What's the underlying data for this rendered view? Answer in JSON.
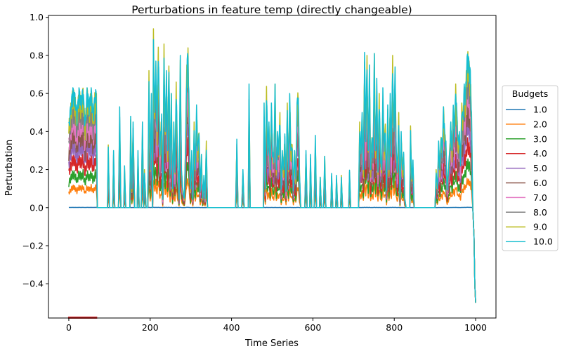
{
  "chart_data": {
    "type": "line",
    "title": "Perturbations in feature temp (directly changeable)",
    "xlabel": "Time Series",
    "ylabel": "Perturbation",
    "xlim": [
      -50,
      1050
    ],
    "ylim": [
      -0.58,
      1.01
    ],
    "x_ticks": [
      0,
      200,
      400,
      600,
      800,
      1000
    ],
    "y_ticks": [
      -0.4,
      -0.2,
      0.0,
      0.2,
      0.4,
      0.6,
      0.8,
      1.0
    ],
    "y_tick_labels": [
      "−0.4",
      "−0.2",
      "0.0",
      "0.2",
      "0.4",
      "0.6",
      "0.8",
      "1.0"
    ],
    "grid": false,
    "legend": {
      "title": "Budgets",
      "placement": "right (outside plot)"
    },
    "series": [
      {
        "name": "1.0",
        "color": "#1f77b4",
        "scale": 0.002
      },
      {
        "name": "2.0",
        "color": "#ff7f0e",
        "scale": 0.17
      },
      {
        "name": "3.0",
        "color": "#2ca02c",
        "scale": 0.28
      },
      {
        "name": "4.0",
        "color": "#d62728",
        "scale": 0.4
      },
      {
        "name": "5.0",
        "color": "#9467bd",
        "scale": 0.52
      },
      {
        "name": "6.0",
        "color": "#8c564b",
        "scale": 0.62
      },
      {
        "name": "7.0",
        "color": "#e377c2",
        "scale": 0.72
      },
      {
        "name": "8.0",
        "color": "#7f7f7f",
        "scale": 0.82
      },
      {
        "name": "9.0",
        "color": "#bcbd22",
        "scale": 0.92
      },
      {
        "name": "10.0",
        "color": "#17becf",
        "scale": 1.0
      }
    ],
    "envelope_points": [
      [
        0,
        0.45
      ],
      [
        5,
        0.55
      ],
      [
        10,
        0.63
      ],
      [
        15,
        0.6
      ],
      [
        20,
        0.5
      ],
      [
        25,
        0.63
      ],
      [
        30,
        0.58
      ],
      [
        35,
        0.63
      ],
      [
        40,
        0.45
      ],
      [
        45,
        0.63
      ],
      [
        50,
        0.55
      ],
      [
        55,
        0.63
      ],
      [
        60,
        0.5
      ],
      [
        65,
        0.63
      ],
      [
        68,
        0.6
      ],
      [
        70,
        0
      ],
      [
        95,
        0
      ],
      [
        97,
        0.33
      ],
      [
        100,
        0
      ],
      [
        108,
        0
      ],
      [
        110,
        0.3
      ],
      [
        113,
        0
      ],
      [
        122,
        0
      ],
      [
        125,
        0.53
      ],
      [
        128,
        0
      ],
      [
        135,
        0
      ],
      [
        137,
        0.22
      ],
      [
        140,
        0
      ],
      [
        150,
        0
      ],
      [
        152,
        0.48
      ],
      [
        155,
        0.1
      ],
      [
        158,
        0.45
      ],
      [
        162,
        0
      ],
      [
        168,
        0
      ],
      [
        170,
        0.3
      ],
      [
        173,
        0
      ],
      [
        178,
        0
      ],
      [
        181,
        0.45
      ],
      [
        184,
        0
      ],
      [
        186,
        0.2
      ],
      [
        190,
        0
      ],
      [
        194,
        0
      ],
      [
        197,
        0.72
      ],
      [
        200,
        0.2
      ],
      [
        203,
        0.6
      ],
      [
        206,
        0
      ],
      [
        208,
        0.94
      ],
      [
        211,
        0.5
      ],
      [
        214,
        0.77
      ],
      [
        217,
        0.4
      ],
      [
        220,
        0.88
      ],
      [
        224,
        0.3
      ],
      [
        228,
        0.5
      ],
      [
        231,
        0.05
      ],
      [
        234,
        0.86
      ],
      [
        237,
        0.4
      ],
      [
        240,
        0.72
      ],
      [
        243,
        0.3
      ],
      [
        246,
        0.8
      ],
      [
        249,
        0.2
      ],
      [
        252,
        0.6
      ],
      [
        255,
        0.1
      ],
      [
        258,
        0.45
      ],
      [
        261,
        0.2
      ],
      [
        264,
        0.66
      ],
      [
        267,
        0.3
      ],
      [
        271,
        0.05
      ],
      [
        274,
        0.8
      ],
      [
        277,
        0.2
      ],
      [
        280,
        0.1
      ],
      [
        284,
        0.05
      ],
      [
        287,
        0.35
      ],
      [
        290,
        0.75
      ],
      [
        293,
        0.84
      ],
      [
        296,
        0.5
      ],
      [
        299,
        0.1
      ],
      [
        302,
        0.3
      ],
      [
        305,
        0.05
      ],
      [
        308,
        0.45
      ],
      [
        311,
        0.2
      ],
      [
        314,
        0.54
      ],
      [
        317,
        0.3
      ],
      [
        320,
        0.43
      ],
      [
        323,
        0.1
      ],
      [
        326,
        0.28
      ],
      [
        329,
        0.05
      ],
      [
        332,
        0.17
      ],
      [
        335,
        0.05
      ],
      [
        338,
        0.35
      ],
      [
        341,
        0
      ],
      [
        410,
        0
      ],
      [
        413,
        0.36
      ],
      [
        416,
        0
      ],
      [
        425,
        0
      ],
      [
        428,
        0.2
      ],
      [
        431,
        0
      ],
      [
        441,
        0
      ],
      [
        443,
        0.65
      ],
      [
        446,
        0
      ],
      [
        478,
        0
      ],
      [
        480,
        0.55
      ],
      [
        483,
        0.1
      ],
      [
        486,
        0.65
      ],
      [
        489,
        0.3
      ],
      [
        492,
        0.45
      ],
      [
        495,
        0.2
      ],
      [
        498,
        0.55
      ],
      [
        501,
        0.3
      ],
      [
        504,
        0.27
      ],
      [
        507,
        0.65
      ],
      [
        510,
        0.2
      ],
      [
        513,
        0.4
      ],
      [
        516,
        0.3
      ],
      [
        519,
        0.5
      ],
      [
        522,
        0.1
      ],
      [
        525,
        0.3
      ],
      [
        528,
        0.2
      ],
      [
        531,
        0.4
      ],
      [
        534,
        0.1
      ],
      [
        537,
        0.55
      ],
      [
        540,
        0.2
      ],
      [
        543,
        0.6
      ],
      [
        546,
        0.3
      ],
      [
        549,
        0.35
      ],
      [
        552,
        0.1
      ],
      [
        555,
        0.3
      ],
      [
        558,
        0.15
      ],
      [
        561,
        0.55
      ],
      [
        564,
        0.63
      ],
      [
        567,
        0.2
      ],
      [
        570,
        0
      ],
      [
        580,
        0
      ],
      [
        583,
        0.3
      ],
      [
        586,
        0
      ],
      [
        592,
        0
      ],
      [
        594,
        0.28
      ],
      [
        597,
        0
      ],
      [
        603,
        0
      ],
      [
        606,
        0.38
      ],
      [
        609,
        0
      ],
      [
        616,
        0
      ],
      [
        618,
        0.16
      ],
      [
        621,
        0
      ],
      [
        626,
        0
      ],
      [
        629,
        0.27
      ],
      [
        632,
        0
      ],
      [
        644,
        0
      ],
      [
        646,
        0.18
      ],
      [
        649,
        0
      ],
      [
        656,
        0
      ],
      [
        658,
        0.17
      ],
      [
        661,
        0
      ],
      [
        668,
        0
      ],
      [
        670,
        0.17
      ],
      [
        673,
        0
      ],
      [
        688,
        0
      ],
      [
        690,
        0.2
      ],
      [
        693,
        0
      ],
      [
        712,
        0
      ],
      [
        715,
        0.45
      ],
      [
        718,
        0.3
      ],
      [
        721,
        0.5
      ],
      [
        724,
        0.2
      ],
      [
        727,
        0.82
      ],
      [
        730,
        0.4
      ],
      [
        733,
        0.8
      ],
      [
        736,
        0.3
      ],
      [
        739,
        0.75
      ],
      [
        742,
        0.2
      ],
      [
        745,
        0.4
      ],
      [
        748,
        0.3
      ],
      [
        751,
        0.81
      ],
      [
        754,
        0.3
      ],
      [
        757,
        0.68
      ],
      [
        760,
        0.2
      ],
      [
        763,
        0.6
      ],
      [
        766,
        0.3
      ],
      [
        769,
        0.2
      ],
      [
        772,
        0.63
      ],
      [
        775,
        0.3
      ],
      [
        778,
        0.45
      ],
      [
        781,
        0.1
      ],
      [
        784,
        0.54
      ],
      [
        787,
        0.2
      ],
      [
        790,
        0.6
      ],
      [
        793,
        0.3
      ],
      [
        796,
        0.8
      ],
      [
        799,
        0.4
      ],
      [
        802,
        0.74
      ],
      [
        805,
        0.3
      ],
      [
        808,
        0.2
      ],
      [
        811,
        0.5
      ],
      [
        814,
        0.05
      ],
      [
        817,
        0.4
      ],
      [
        820,
        0.2
      ],
      [
        823,
        0.3
      ],
      [
        826,
        0.05
      ],
      [
        829,
        0
      ],
      [
        838,
        0
      ],
      [
        840,
        0.43
      ],
      [
        843,
        0.15
      ],
      [
        846,
        0.25
      ],
      [
        849,
        0
      ],
      [
        900,
        0
      ],
      [
        903,
        0.2
      ],
      [
        906,
        0.1
      ],
      [
        909,
        0.35
      ],
      [
        912,
        0.2
      ],
      [
        915,
        0.4
      ],
      [
        918,
        0.3
      ],
      [
        921,
        0.53
      ],
      [
        924,
        0.4
      ],
      [
        927,
        0.35
      ],
      [
        930,
        0.1
      ],
      [
        933,
        0.2
      ],
      [
        936,
        0.3
      ],
      [
        939,
        0.45
      ],
      [
        942,
        0.3
      ],
      [
        945,
        0.55
      ],
      [
        948,
        0.4
      ],
      [
        951,
        0.65
      ],
      [
        954,
        0.5
      ],
      [
        957,
        0.35
      ],
      [
        960,
        0.4
      ],
      [
        963,
        0.25
      ],
      [
        966,
        0.55
      ],
      [
        969,
        0.48
      ],
      [
        972,
        0.65
      ],
      [
        975,
        0.6
      ],
      [
        978,
        0.78
      ],
      [
        981,
        0.82
      ],
      [
        984,
        0.77
      ],
      [
        987,
        0.72
      ],
      [
        990,
        0.5
      ],
      [
        993,
        0
      ],
      [
        996,
        -0.15
      ],
      [
        998,
        -0.4
      ],
      [
        1000,
        -0.5
      ]
    ],
    "red_markers_x_range": [
      0,
      68
    ]
  }
}
